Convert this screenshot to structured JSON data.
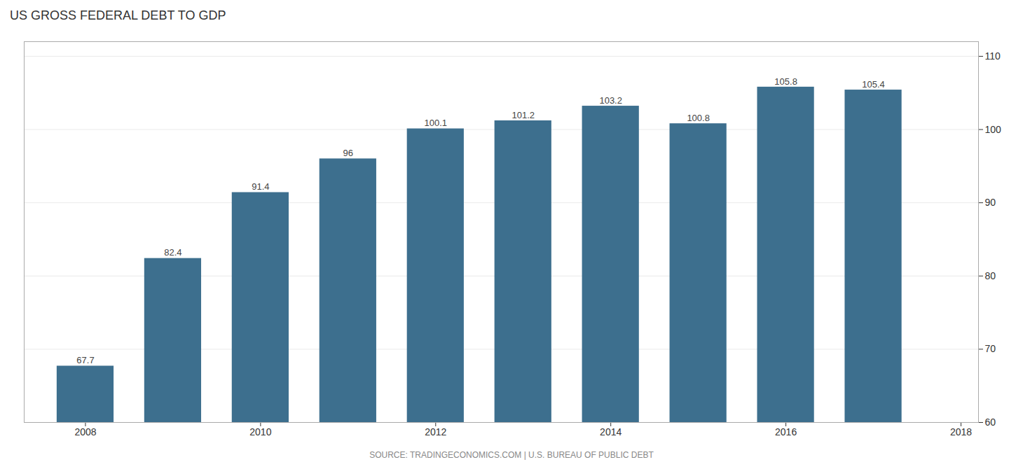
{
  "chart_data": {
    "type": "bar",
    "title": "US GROSS FEDERAL DEBT TO GDP",
    "caption": "SOURCE: TRADINGECONOMICS.COM | U.S. BUREAU OF PUBLIC DEBT",
    "x": [
      2008,
      2009,
      2010,
      2011,
      2012,
      2013,
      2014,
      2015,
      2016,
      2017
    ],
    "values": [
      67.7,
      82.4,
      91.4,
      96.0,
      100.1,
      101.2,
      103.2,
      100.8,
      105.8,
      105.4
    ],
    "color": "#3d6f8e",
    "xlim": [
      2007.3,
      2018.2
    ],
    "xticks": [
      2008,
      2010,
      2012,
      2014,
      2016,
      2018
    ],
    "ylim": [
      60,
      112
    ],
    "yticks": [
      60,
      70,
      80,
      90,
      100,
      110
    ],
    "grid": true,
    "data_labels": true
  }
}
